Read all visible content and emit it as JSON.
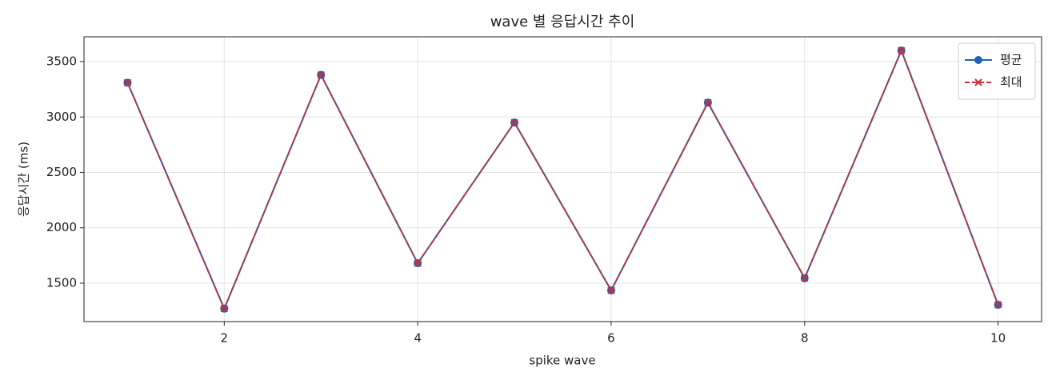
{
  "chart_data": {
    "type": "line",
    "title": "wave 별 응답시간 추이",
    "x_label": "spike wave",
    "y_label": "응답시간 (ms)",
    "x": [
      1,
      2,
      3,
      4,
      5,
      6,
      7,
      8,
      9,
      10
    ],
    "series": [
      {
        "name": "평균",
        "color": "#1f62b5",
        "marker": "o",
        "dash": false,
        "values": [
          3310,
          1270,
          3380,
          1680,
          2950,
          1435,
          3130,
          1545,
          3600,
          1305
        ]
      },
      {
        "name": "최대",
        "color": "#c8323a",
        "marker": "x",
        "dash": true,
        "values": [
          3310,
          1270,
          3380,
          1680,
          2950,
          1435,
          3130,
          1545,
          3600,
          1305
        ]
      }
    ],
    "xlim": [
      0.55,
      10.45
    ],
    "ylim": [
      1153,
      3724
    ],
    "xticks": [
      2,
      4,
      6,
      8,
      10
    ],
    "yticks": [
      1500,
      2000,
      2500,
      3000,
      3500
    ],
    "grid": true,
    "legend": "upper right"
  }
}
